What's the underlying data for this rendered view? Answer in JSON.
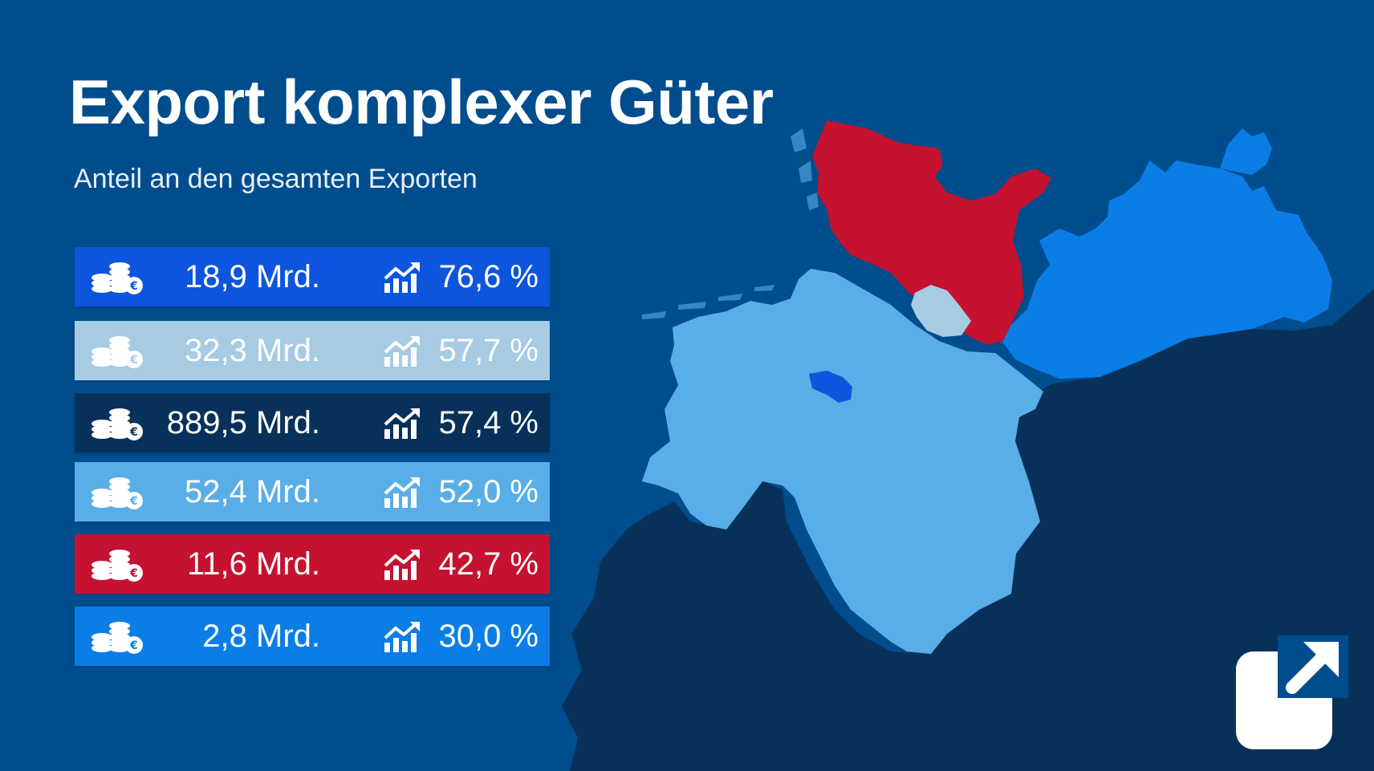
{
  "title": "Export komplexer Güter",
  "subtitle": "Anteil an den gesamten Exporten",
  "rows": [
    {
      "amount": "18,9 Mrd.",
      "share": "76,6 %",
      "color": "#0d55dd",
      "coins_icon": "coins-euro-icon",
      "trend_icon": "trend-up-chart-icon"
    },
    {
      "amount": "32,3 Mrd.",
      "share": "57,7 %",
      "color": "#a6cbe3",
      "coins_icon": "coins-euro-icon",
      "trend_icon": "trend-up-chart-icon"
    },
    {
      "amount": "889,5 Mrd.",
      "share": "57,4 %",
      "color": "#08315a",
      "coins_icon": "coins-euro-icon",
      "trend_icon": "trend-up-chart-icon"
    },
    {
      "amount": "52,4 Mrd.",
      "share": "52,0 %",
      "color": "#5aaee8",
      "coins_icon": "coins-euro-icon",
      "trend_icon": "trend-up-chart-icon"
    },
    {
      "amount": "11,6 Mrd.",
      "share": "42,7 %",
      "color": "#c41230",
      "coins_icon": "coins-euro-icon",
      "trend_icon": "trend-up-chart-icon"
    },
    {
      "amount": "2,8 Mrd.",
      "share": "30,0 %",
      "color": "#0a7ee6",
      "coins_icon": "coins-euro-icon",
      "trend_icon": "trend-up-chart-icon"
    }
  ],
  "map": {
    "background": "#004d8e",
    "regions": [
      {
        "id": "schleswig-holstein",
        "color": "#c41230"
      },
      {
        "id": "hamburg",
        "color": "#a6cbe3"
      },
      {
        "id": "niedersachsen",
        "color": "#5aaee8"
      },
      {
        "id": "bremen",
        "color": "#0d55dd"
      },
      {
        "id": "mecklenburg-vorpommern",
        "color": "#0a7ee6"
      },
      {
        "id": "rest-deutschland",
        "color": "#08315a"
      }
    ]
  },
  "link_icon": "external-link-icon"
}
